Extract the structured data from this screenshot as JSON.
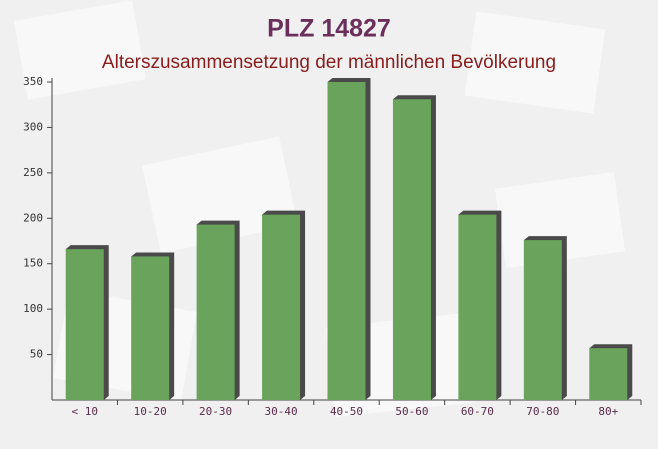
{
  "chart_data": {
    "type": "bar",
    "title": "PLZ 14827",
    "subtitle": "Alterszusammensetzung der männlichen Bevölkerung",
    "categories": [
      "< 10",
      "10-20",
      "20-30",
      "30-40",
      "40-50",
      "50-60",
      "60-70",
      "70-80",
      "80+"
    ],
    "values": [
      166,
      158,
      193,
      204,
      350,
      331,
      204,
      176,
      57
    ],
    "color": "#6aa45c",
    "ylim": [
      0,
      350
    ],
    "yticks": [
      50,
      100,
      150,
      200,
      250,
      300,
      350
    ]
  }
}
